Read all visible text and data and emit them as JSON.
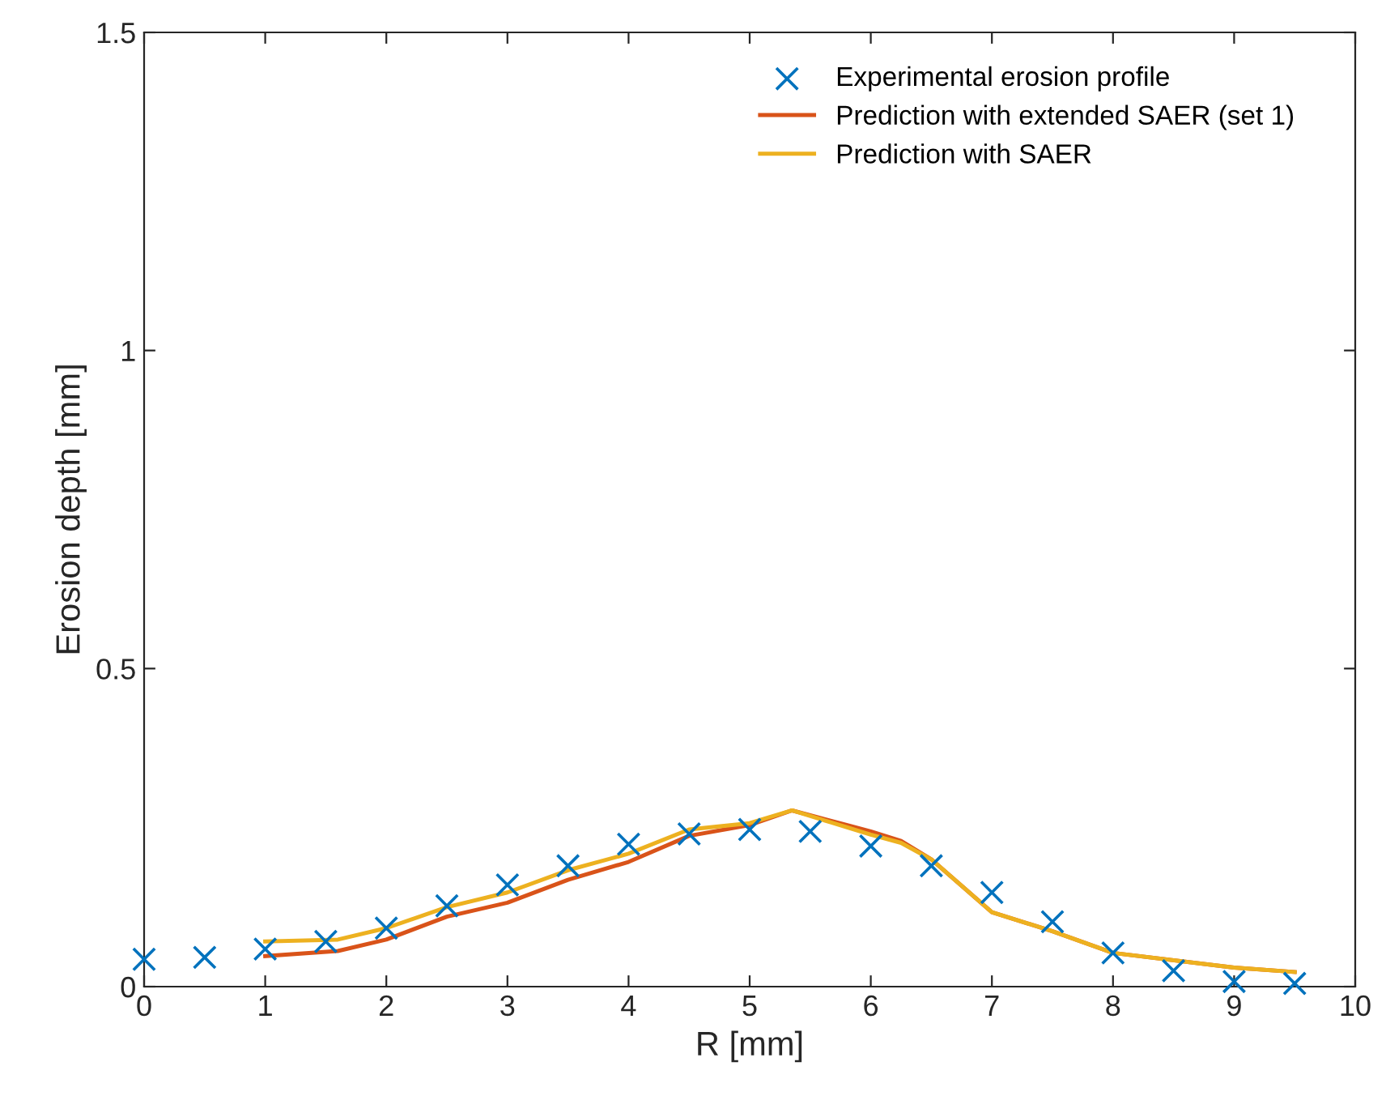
{
  "chart_data": {
    "type": "scatter",
    "xlabel": "R [mm]",
    "ylabel": "Erosion depth [mm]",
    "xlim": [
      0,
      10
    ],
    "ylim": [
      0,
      1.5
    ],
    "xticks": [
      0,
      1,
      2,
      3,
      4,
      5,
      6,
      7,
      8,
      9,
      10
    ],
    "yticks": [
      0,
      {
        "value": 0.5,
        "label": "0.5"
      },
      1,
      {
        "value": 1.5,
        "label": "1.5"
      }
    ],
    "grid": false,
    "legend": "top right",
    "series": [
      {
        "name": "Experimental erosion profile",
        "marker": "cross",
        "color": "#0072bd",
        "x": [
          0,
          0.5,
          1,
          1.5,
          2,
          2.5,
          3,
          3.5,
          4,
          4.5,
          5,
          5.5,
          6,
          6.5,
          7,
          7.5,
          8,
          8.5,
          9,
          9.5
        ],
        "values": [
          0.043,
          0.046,
          0.059,
          0.071,
          0.092,
          0.127,
          0.16,
          0.19,
          0.224,
          0.24,
          0.247,
          0.244,
          0.221,
          0.19,
          0.148,
          0.102,
          0.053,
          0.025,
          0.008,
          0.005
        ]
      },
      {
        "name": "Prediction with extended SAER (set 1)",
        "type": "line",
        "color": "#d95319",
        "x": [
          1,
          1.6,
          2,
          2.5,
          3,
          3.5,
          4,
          4.5,
          5,
          5.35,
          6,
          6.25,
          6.5,
          7,
          7.5,
          8,
          9,
          9.5
        ],
        "values": [
          0.048,
          0.056,
          0.074,
          0.11,
          0.132,
          0.168,
          0.196,
          0.237,
          0.254,
          0.277,
          0.244,
          0.229,
          0.2,
          0.117,
          0.087,
          0.053,
          0.03,
          0.023
        ]
      },
      {
        "name": "Prediction with SAER",
        "type": "line",
        "color": "#edb120",
        "x": [
          1,
          1.6,
          2,
          2.5,
          3,
          3.5,
          4,
          4.5,
          5,
          5.35,
          6,
          6.25,
          6.5,
          7,
          7.5,
          8,
          9,
          9.5
        ],
        "values": [
          0.071,
          0.074,
          0.092,
          0.125,
          0.148,
          0.183,
          0.209,
          0.247,
          0.257,
          0.277,
          0.239,
          0.226,
          0.2,
          0.117,
          0.087,
          0.053,
          0.03,
          0.023
        ]
      }
    ]
  }
}
